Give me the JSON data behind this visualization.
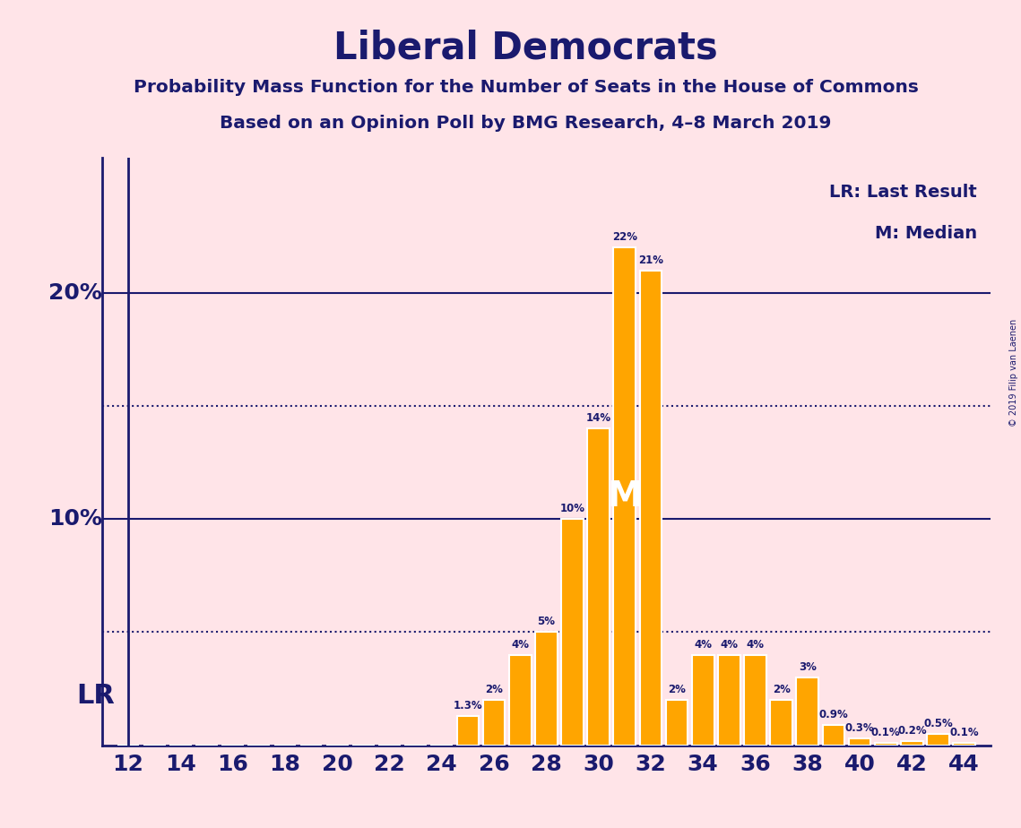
{
  "title": "Liberal Democrats",
  "subtitle1": "Probability Mass Function for the Number of Seats in the House of Commons",
  "subtitle2": "Based on an Opinion Poll by BMG Research, 4–8 March 2019",
  "copyright": "© 2019 Filip van Laenen",
  "seats": [
    12,
    13,
    14,
    15,
    16,
    17,
    18,
    19,
    20,
    21,
    22,
    23,
    24,
    25,
    26,
    27,
    28,
    29,
    30,
    31,
    32,
    33,
    34,
    35,
    36,
    37,
    38,
    39,
    40,
    41,
    42,
    43,
    44
  ],
  "values": [
    0,
    0,
    0,
    0,
    0,
    0,
    0,
    0,
    0,
    0,
    0,
    0,
    0,
    1.3,
    2,
    4,
    5,
    10,
    14,
    22,
    21,
    2,
    4,
    4,
    4,
    2,
    3,
    0.9,
    0.3,
    0.1,
    0.2,
    0.5,
    0.1
  ],
  "bar_color": "#FFA500",
  "bar_edge_color": "#FFFFFF",
  "background_color": "#FFE4E8",
  "text_color": "#1a1a6e",
  "axis_color": "#1a1a6e",
  "grid_color": "#1a1a6e",
  "lr_seat": 12,
  "median_seat": 31,
  "legend_lr": "LR: Last Result",
  "legend_m": "M: Median",
  "major_ytick_vals": [
    10,
    20
  ],
  "major_ytick_labels": [
    "10%",
    "20%"
  ],
  "dotted_ytick_vals": [
    5,
    15
  ],
  "xlim": [
    11,
    45
  ],
  "ylim": [
    0,
    26
  ],
  "xticks": [
    12,
    14,
    16,
    18,
    20,
    22,
    24,
    26,
    28,
    30,
    32,
    34,
    36,
    38,
    40,
    42,
    44
  ]
}
